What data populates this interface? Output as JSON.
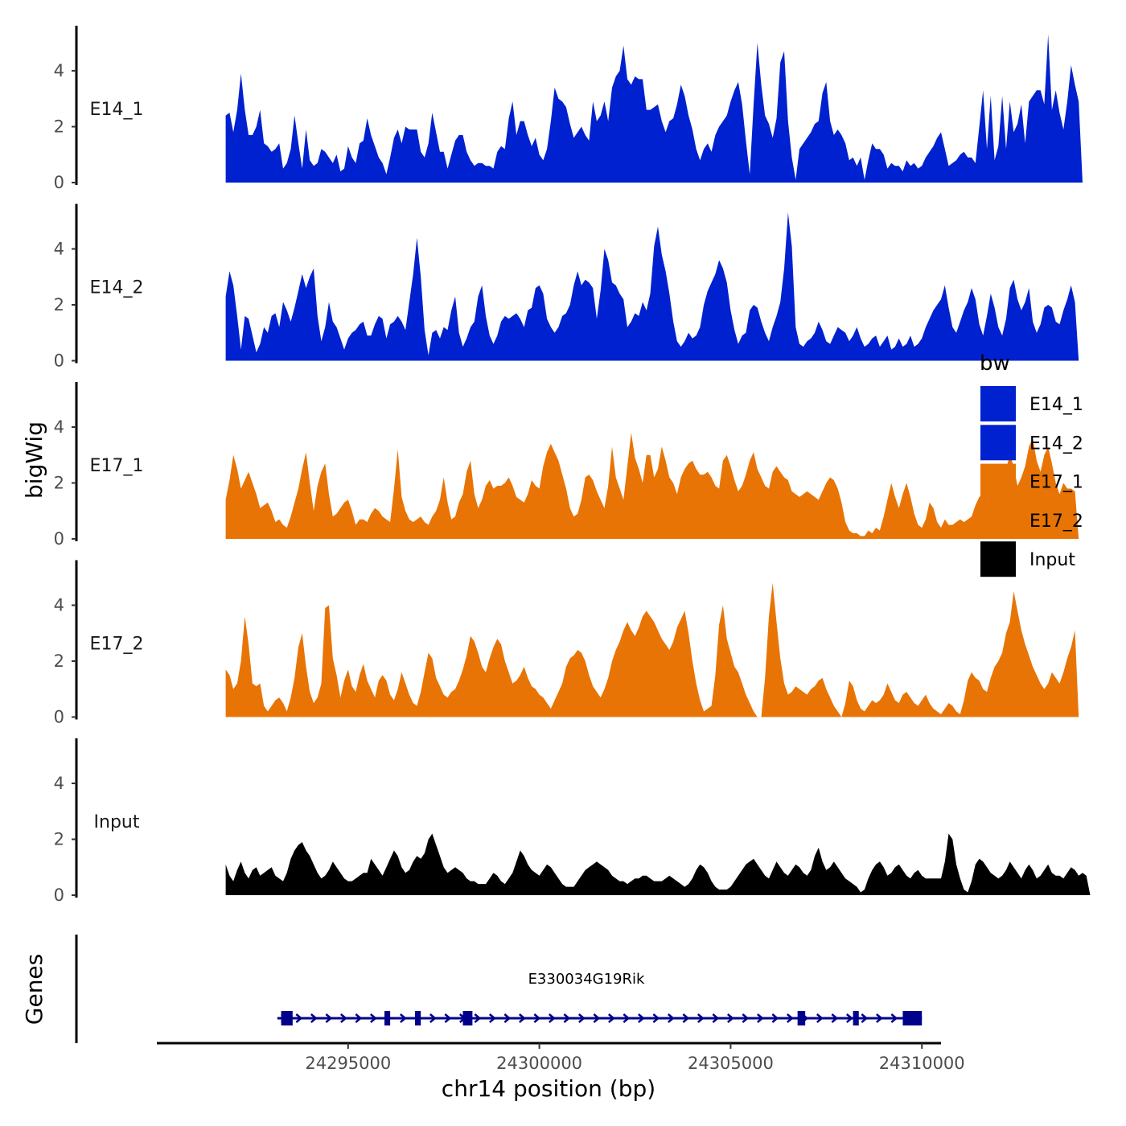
{
  "chart_data": {
    "type": "area",
    "xlabel": "chr14 position (bp)",
    "ylabel": "bigWig",
    "genes_label": "Genes",
    "xlim": [
      24290000,
      24310500
    ],
    "ylim": [
      0,
      5.6
    ],
    "x_ticks": [
      {
        "value": 24295000,
        "label": "24295000"
      },
      {
        "value": 24300000,
        "label": "24300000"
      },
      {
        "value": 24305000,
        "label": "24305000"
      },
      {
        "value": 24310000,
        "label": "24310000"
      }
    ],
    "y_ticks": [
      {
        "value": 0,
        "label": "0"
      },
      {
        "value": 2,
        "label": "2"
      },
      {
        "value": 4,
        "label": "4"
      }
    ],
    "x_start": 24291800,
    "x_step": 100,
    "legend": {
      "title": "bw",
      "entries": [
        {
          "label": "E14_1",
          "color": "#0021CF"
        },
        {
          "label": "E14_2",
          "color": "#0021CF"
        },
        {
          "label": "E17_1",
          "color": "#E87405"
        },
        {
          "label": "E17_2",
          "color": "#E87405"
        },
        {
          "label": "Input",
          "color": "#000000"
        }
      ]
    },
    "series": [
      {
        "name": "E14_1",
        "color": "#0021CF",
        "values": [
          2.4,
          2.5,
          1.8,
          2.6,
          3.9,
          2.6,
          1.7,
          1.7,
          2.0,
          2.6,
          1.4,
          1.3,
          1.1,
          1.2,
          1.4,
          0.5,
          0.7,
          1.2,
          2.4,
          1.4,
          0.5,
          1.9,
          0.8,
          0.6,
          0.7,
          1.2,
          1.1,
          0.9,
          0.7,
          1.0,
          0.4,
          0.5,
          1.3,
          0.9,
          0.7,
          1.4,
          1.5,
          2.3,
          1.7,
          1.3,
          0.9,
          0.7,
          0.3,
          0.9,
          1.6,
          1.9,
          1.4,
          2.0,
          1.9,
          1.9,
          1.9,
          1.1,
          0.9,
          1.4,
          2.5,
          1.8,
          1.1,
          1.1,
          0.5,
          1.0,
          1.5,
          1.7,
          1.7,
          1.1,
          0.8,
          0.6,
          0.7,
          0.7,
          0.6,
          0.6,
          0.5,
          1.1,
          1.3,
          1.2,
          2.3,
          2.9,
          1.7,
          2.2,
          2.2,
          1.7,
          1.3,
          1.6,
          1.0,
          0.8,
          1.2,
          2.2,
          3.4,
          3.0,
          2.9,
          2.7,
          2.1,
          1.6,
          1.8,
          2.0,
          1.7,
          1.5,
          2.9,
          2.2,
          2.4,
          2.9,
          2.2,
          3.4,
          3.8,
          4.0,
          4.9,
          3.7,
          3.5,
          3.8,
          3.7,
          3.7,
          2.6,
          2.6,
          2.7,
          2.8,
          2.2,
          1.8,
          2.2,
          2.3,
          2.8,
          3.5,
          3.1,
          2.4,
          1.9,
          1.2,
          0.8,
          1.2,
          1.4,
          1.1,
          1.7,
          2.0,
          2.2,
          2.4,
          2.9,
          3.3,
          3.6,
          2.8,
          1.5,
          0.3,
          2.8,
          5.0,
          3.5,
          2.4,
          2.1,
          1.6,
          2.3,
          4.3,
          4.7,
          2.2,
          0.9,
          0.1,
          1.2,
          1.4,
          1.6,
          1.8,
          2.1,
          2.2,
          3.2,
          3.6,
          2.2,
          1.7,
          1.9,
          1.7,
          1.4,
          0.8,
          0.9,
          0.6,
          0.9,
          0.1,
          0.8,
          1.4,
          1.2,
          1.2,
          1.0,
          0.5,
          0.7,
          0.6,
          0.6,
          0.4,
          0.8,
          0.6,
          0.7,
          0.5,
          0.6,
          0.9,
          1.1,
          1.3,
          1.6,
          1.8,
          1.2,
          0.6,
          0.7,
          0.8,
          1.0,
          1.1,
          0.9,
          0.9,
          0.7,
          2.0,
          3.3,
          1.2,
          3.1,
          0.8,
          1.3,
          3.1,
          1.2,
          2.9,
          1.8,
          2.1,
          2.8,
          1.4,
          2.9,
          3.1,
          3.3,
          3.3,
          2.8,
          5.3,
          2.6,
          3.3,
          2.5,
          1.9,
          2.9,
          4.2,
          3.5,
          2.9,
          0.0
        ]
      },
      {
        "name": "E14_2",
        "color": "#0021CF",
        "values": [
          2.3,
          3.2,
          2.7,
          1.6,
          0.4,
          1.6,
          1.5,
          0.9,
          0.3,
          0.6,
          1.2,
          1.0,
          1.6,
          1.7,
          1.2,
          2.1,
          1.8,
          1.4,
          1.9,
          2.5,
          3.1,
          2.6,
          3.0,
          3.3,
          1.6,
          0.7,
          1.2,
          2.1,
          1.4,
          1.2,
          0.8,
          0.4,
          0.8,
          1.0,
          1.1,
          1.3,
          1.4,
          0.9,
          0.9,
          1.3,
          1.6,
          1.5,
          0.8,
          1.3,
          1.4,
          1.6,
          1.4,
          1.1,
          2.1,
          3.1,
          4.4,
          3.0,
          1.1,
          0.2,
          1.0,
          1.1,
          0.8,
          1.2,
          1.1,
          1.8,
          2.3,
          1.0,
          0.5,
          0.8,
          1.2,
          1.4,
          2.3,
          2.7,
          1.6,
          0.9,
          0.6,
          0.9,
          1.4,
          1.6,
          1.5,
          1.6,
          1.7,
          1.5,
          1.2,
          1.8,
          1.9,
          2.6,
          2.7,
          2.4,
          1.5,
          1.2,
          1.0,
          1.2,
          1.6,
          1.7,
          2.0,
          2.7,
          3.2,
          2.7,
          2.9,
          2.8,
          2.6,
          1.5,
          2.5,
          4.0,
          3.6,
          2.8,
          2.7,
          2.4,
          2.2,
          1.2,
          1.4,
          1.7,
          1.6,
          2.1,
          1.8,
          2.4,
          4.1,
          4.8,
          3.8,
          3.2,
          2.4,
          1.4,
          0.7,
          0.5,
          0.7,
          1.0,
          0.8,
          0.9,
          1.2,
          2.0,
          2.5,
          2.8,
          3.1,
          3.6,
          3.3,
          2.8,
          1.8,
          1.1,
          0.6,
          0.9,
          1.0,
          1.8,
          2.0,
          1.9,
          1.4,
          1.0,
          0.7,
          1.2,
          1.6,
          2.1,
          3.3,
          5.3,
          4.1,
          1.2,
          0.6,
          0.5,
          0.7,
          0.8,
          1.0,
          1.4,
          1.1,
          0.7,
          0.6,
          0.9,
          1.2,
          1.1,
          1.0,
          0.7,
          0.9,
          1.2,
          0.8,
          0.5,
          0.6,
          0.8,
          0.9,
          0.5,
          0.7,
          0.9,
          0.4,
          0.5,
          0.8,
          0.5,
          0.6,
          0.9,
          0.5,
          0.6,
          0.8,
          1.2,
          1.5,
          1.8,
          2.0,
          2.2,
          2.7,
          1.9,
          1.2,
          1.0,
          1.4,
          1.8,
          2.1,
          2.6,
          2.2,
          1.3,
          0.9,
          1.6,
          2.4,
          1.9,
          1.2,
          0.9,
          1.5,
          2.6,
          2.9,
          2.2,
          1.8,
          2.1,
          2.6,
          1.4,
          1.0,
          1.3,
          1.9,
          2.0,
          1.9,
          1.4,
          1.3,
          1.8,
          2.2,
          2.7,
          2.1,
          0.0
        ]
      },
      {
        "name": "E17_1",
        "color": "#E87405",
        "values": [
          1.4,
          2.1,
          3.0,
          2.5,
          1.8,
          2.1,
          2.4,
          2.0,
          1.6,
          1.1,
          1.2,
          1.3,
          1.0,
          0.6,
          0.7,
          0.5,
          0.4,
          0.8,
          1.3,
          1.8,
          2.5,
          3.1,
          2.0,
          1.0,
          1.9,
          2.4,
          2.7,
          1.6,
          0.8,
          0.9,
          1.1,
          1.3,
          1.4,
          1.0,
          0.5,
          0.7,
          0.7,
          0.6,
          0.9,
          1.1,
          1.0,
          0.8,
          0.7,
          0.6,
          1.8,
          3.2,
          1.5,
          1.0,
          0.7,
          0.6,
          0.7,
          0.8,
          0.6,
          0.5,
          0.8,
          1.0,
          1.4,
          2.2,
          1.3,
          0.7,
          0.8,
          1.3,
          1.6,
          2.4,
          2.8,
          1.6,
          1.1,
          1.4,
          1.9,
          2.1,
          1.8,
          1.9,
          1.9,
          2.0,
          2.2,
          1.9,
          1.5,
          1.4,
          1.3,
          1.6,
          2.1,
          1.9,
          1.8,
          2.6,
          3.1,
          3.4,
          3.1,
          2.8,
          2.3,
          1.8,
          1.1,
          0.8,
          0.9,
          1.4,
          2.2,
          2.3,
          2.1,
          1.7,
          1.4,
          1.1,
          1.9,
          3.3,
          2.2,
          1.8,
          1.4,
          2.6,
          3.8,
          2.9,
          2.5,
          2.0,
          3.0,
          3.0,
          2.2,
          2.5,
          3.3,
          2.8,
          2.2,
          2.0,
          1.6,
          2.2,
          2.5,
          2.7,
          2.8,
          2.5,
          2.3,
          2.3,
          2.4,
          2.2,
          1.9,
          1.8,
          2.8,
          3.0,
          2.6,
          2.1,
          1.7,
          1.9,
          2.3,
          2.8,
          3.1,
          2.5,
          2.2,
          1.9,
          1.8,
          2.4,
          2.6,
          2.4,
          2.2,
          2.1,
          1.7,
          1.6,
          1.5,
          1.6,
          1.7,
          1.6,
          1.5,
          1.4,
          1.7,
          2.0,
          2.2,
          2.1,
          1.8,
          1.3,
          0.6,
          0.3,
          0.2,
          0.2,
          0.1,
          0.1,
          0.3,
          0.2,
          0.4,
          0.3,
          0.8,
          1.4,
          2.0,
          1.5,
          1.1,
          1.6,
          2.0,
          1.5,
          0.9,
          0.5,
          0.4,
          0.7,
          1.3,
          1.1,
          0.6,
          0.4,
          0.7,
          0.5,
          0.5,
          0.6,
          0.7,
          0.6,
          0.7,
          0.8,
          1.2,
          1.5,
          1.6,
          1.4,
          1.8,
          1.9,
          2.3,
          2.1,
          2.5,
          3.0,
          2.6,
          1.9,
          2.2,
          2.6,
          3.3,
          3.6,
          2.8,
          2.4,
          3.0,
          3.3,
          2.7,
          2.0,
          1.6,
          2.0,
          1.8,
          1.8,
          1.7,
          0.0
        ]
      },
      {
        "name": "E17_2",
        "color": "#E87405",
        "values": [
          1.7,
          1.5,
          1.0,
          1.2,
          2.0,
          3.6,
          2.6,
          1.2,
          1.1,
          1.2,
          0.4,
          0.2,
          0.4,
          0.6,
          0.7,
          0.5,
          0.2,
          0.7,
          1.4,
          2.5,
          3.0,
          1.8,
          0.9,
          0.5,
          0.7,
          1.2,
          3.9,
          4.0,
          2.1,
          1.5,
          0.7,
          1.3,
          1.7,
          1.1,
          0.9,
          1.5,
          1.9,
          1.3,
          1.0,
          0.7,
          1.3,
          1.5,
          1.3,
          0.8,
          0.6,
          1.0,
          1.6,
          1.2,
          0.8,
          0.5,
          0.4,
          0.9,
          1.6,
          2.3,
          2.1,
          1.4,
          1.1,
          0.8,
          0.7,
          0.9,
          1.0,
          1.3,
          1.7,
          2.2,
          2.9,
          2.7,
          2.3,
          1.8,
          1.6,
          2.1,
          2.5,
          2.8,
          2.6,
          2.0,
          1.6,
          1.2,
          1.3,
          1.5,
          1.8,
          1.4,
          1.1,
          1.0,
          0.8,
          0.7,
          0.5,
          0.3,
          0.6,
          0.9,
          1.2,
          1.8,
          2.1,
          2.2,
          2.4,
          2.3,
          2.0,
          1.5,
          1.1,
          0.9,
          0.7,
          1.0,
          1.4,
          2.0,
          2.4,
          2.7,
          3.1,
          3.4,
          3.1,
          2.9,
          3.2,
          3.6,
          3.8,
          3.6,
          3.4,
          3.1,
          2.8,
          2.6,
          2.4,
          2.7,
          3.2,
          3.5,
          3.8,
          3.0,
          2.0,
          1.2,
          0.6,
          0.2,
          0.3,
          0.4,
          1.5,
          3.3,
          4.0,
          2.8,
          2.3,
          1.8,
          1.6,
          1.2,
          0.8,
          0.5,
          0.2,
          0.0,
          0.0,
          1.4,
          3.6,
          4.8,
          3.4,
          2.1,
          1.2,
          0.8,
          0.9,
          1.1,
          1.0,
          0.9,
          0.8,
          1.0,
          1.1,
          1.3,
          1.4,
          1.0,
          0.7,
          0.4,
          0.2,
          0.0,
          0.5,
          1.3,
          1.1,
          0.6,
          0.3,
          0.2,
          0.4,
          0.6,
          0.5,
          0.6,
          0.8,
          1.2,
          0.9,
          0.6,
          0.5,
          0.8,
          0.9,
          0.7,
          0.5,
          0.4,
          0.6,
          0.8,
          0.5,
          0.3,
          0.2,
          0.1,
          0.3,
          0.5,
          0.4,
          0.2,
          0.1,
          0.6,
          1.3,
          1.6,
          1.4,
          1.3,
          1.0,
          0.9,
          1.4,
          1.8,
          2.0,
          2.3,
          3.0,
          3.4,
          4.5,
          3.8,
          3.1,
          2.6,
          2.2,
          1.8,
          1.5,
          1.2,
          1.0,
          1.2,
          1.6,
          1.4,
          1.2,
          1.6,
          2.1,
          2.5,
          3.1,
          0.0
        ]
      },
      {
        "name": "Input",
        "color": "#000000",
        "values": [
          1.1,
          0.7,
          0.5,
          0.9,
          1.2,
          0.8,
          0.6,
          0.9,
          1.0,
          0.7,
          0.8,
          0.9,
          1.0,
          0.7,
          0.6,
          0.5,
          0.8,
          1.3,
          1.6,
          1.8,
          1.9,
          1.6,
          1.4,
          1.1,
          0.8,
          0.6,
          0.7,
          0.9,
          1.2,
          1.0,
          0.8,
          0.6,
          0.5,
          0.5,
          0.6,
          0.7,
          0.8,
          0.8,
          1.3,
          1.1,
          0.9,
          0.7,
          1.0,
          1.3,
          1.6,
          1.4,
          1.0,
          0.8,
          0.9,
          1.2,
          1.4,
          1.3,
          1.5,
          2.0,
          2.2,
          1.8,
          1.4,
          1.0,
          0.8,
          0.9,
          1.0,
          0.9,
          0.8,
          0.6,
          0.5,
          0.5,
          0.4,
          0.4,
          0.4,
          0.6,
          0.8,
          0.7,
          0.5,
          0.4,
          0.6,
          0.8,
          1.2,
          1.6,
          1.4,
          1.1,
          0.9,
          0.8,
          0.7,
          0.9,
          1.1,
          1.0,
          0.8,
          0.6,
          0.4,
          0.3,
          0.3,
          0.3,
          0.5,
          0.7,
          0.9,
          1.0,
          1.1,
          1.2,
          1.1,
          1.0,
          0.9,
          0.7,
          0.6,
          0.5,
          0.5,
          0.4,
          0.5,
          0.6,
          0.6,
          0.7,
          0.7,
          0.6,
          0.5,
          0.5,
          0.5,
          0.6,
          0.7,
          0.6,
          0.5,
          0.4,
          0.3,
          0.4,
          0.6,
          0.9,
          1.1,
          1.0,
          0.8,
          0.5,
          0.3,
          0.2,
          0.2,
          0.2,
          0.3,
          0.5,
          0.7,
          0.9,
          1.1,
          1.2,
          1.3,
          1.1,
          0.9,
          0.7,
          0.6,
          0.9,
          1.2,
          1.0,
          0.8,
          0.7,
          0.9,
          1.1,
          1.0,
          0.8,
          0.7,
          0.9,
          1.4,
          1.7,
          1.2,
          0.9,
          1.0,
          1.2,
          1.0,
          0.8,
          0.6,
          0.5,
          0.4,
          0.3,
          0.1,
          0.2,
          0.6,
          0.9,
          1.1,
          1.2,
          1.0,
          0.7,
          0.8,
          1.0,
          1.1,
          0.9,
          0.7,
          0.6,
          0.8,
          0.9,
          0.7,
          0.6,
          0.6,
          0.6,
          0.6,
          0.6,
          1.2,
          2.2,
          2.0,
          1.1,
          0.6,
          0.2,
          0.1,
          0.5,
          1.1,
          1.3,
          1.2,
          1.0,
          0.8,
          0.7,
          0.6,
          0.7,
          0.9,
          1.2,
          1.0,
          0.8,
          0.6,
          0.9,
          1.1,
          0.9,
          0.6,
          0.7,
          0.9,
          1.1,
          0.8,
          0.7,
          0.7,
          0.6,
          0.8,
          1.0,
          0.9,
          0.7,
          0.8,
          0.7,
          0.0
        ]
      }
    ],
    "gene": {
      "name": "E330034G19Rik",
      "start": 24293150,
      "end": 24310000,
      "strand": "+",
      "color": "#00008B",
      "exons": [
        {
          "start": 24293250,
          "end": 24293550
        },
        {
          "start": 24295950,
          "end": 24296100
        },
        {
          "start": 24296750,
          "end": 24296900
        },
        {
          "start": 24298000,
          "end": 24298250
        },
        {
          "start": 24306750,
          "end": 24306950
        },
        {
          "start": 24308200,
          "end": 24308350
        },
        {
          "start": 24309500,
          "end": 24310000
        }
      ]
    }
  }
}
